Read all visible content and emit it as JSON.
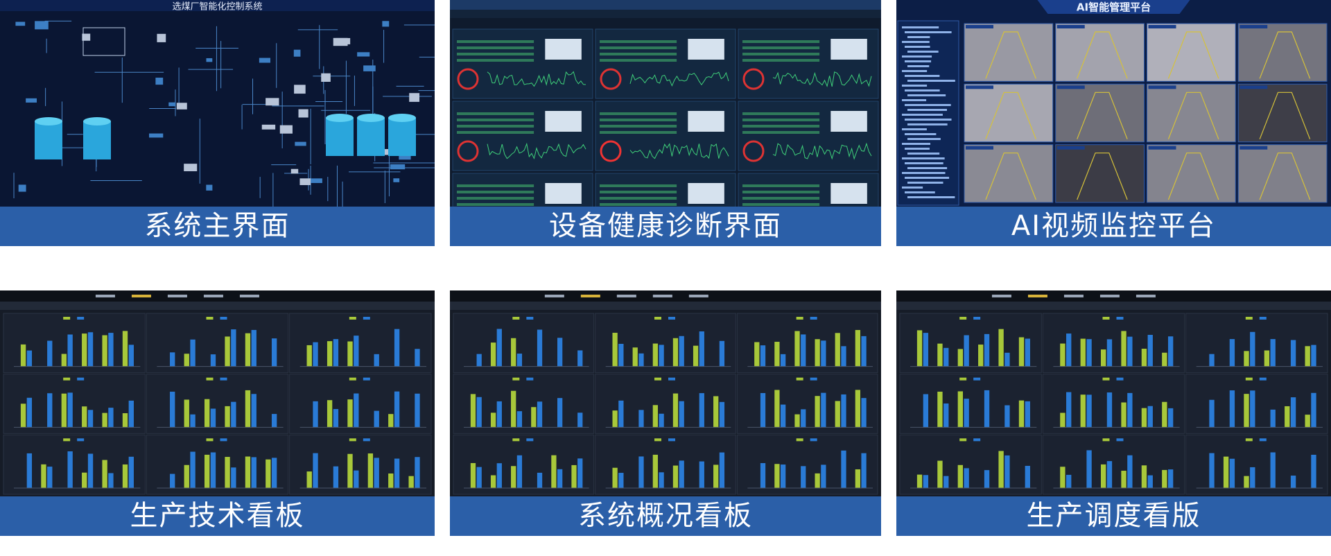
{
  "panels": [
    {
      "caption": "系统主界面",
      "screen_title": "选煤厂智能化控制系统"
    },
    {
      "caption": "设备健康诊断界面"
    },
    {
      "caption": "AI视频监控平台",
      "screen_title": "AI智能管理平台"
    },
    {
      "caption": "生产技术看板"
    },
    {
      "caption": "系统概况看板"
    },
    {
      "caption": "生产调度看版"
    }
  ]
}
